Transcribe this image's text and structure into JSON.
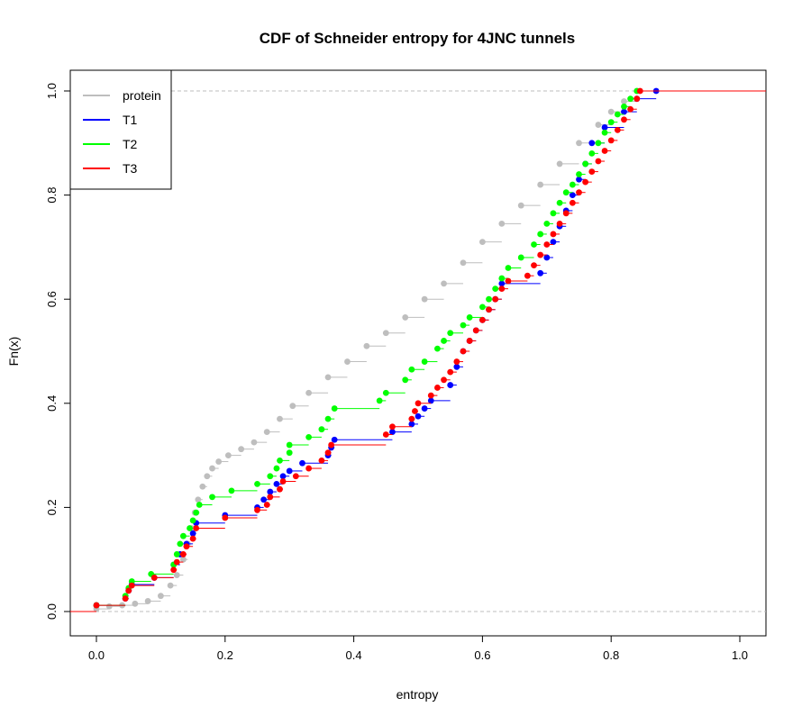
{
  "chart_data": {
    "type": "line",
    "title": "CDF of Schneider entropy for 4JNC  tunnels",
    "xlabel": "entropy",
    "ylabel": "Fn(x)",
    "xlim": [
      -0.04,
      1.04
    ],
    "ylim": [
      -0.04,
      1.04
    ],
    "x_ticks": [
      "0.0",
      "0.2",
      "0.4",
      "0.6",
      "0.8",
      "1.0"
    ],
    "y_ticks": [
      "0.0",
      "0.2",
      "0.4",
      "0.6",
      "0.8",
      "1.0"
    ],
    "grid": false,
    "reference_lines": [
      0.0,
      1.0
    ],
    "legend_position": "top-left",
    "series": [
      {
        "name": "protein",
        "color": "#bebebe",
        "points": [
          [
            0.0,
            0.005
          ],
          [
            0.02,
            0.01
          ],
          [
            0.04,
            0.012
          ],
          [
            0.06,
            0.015
          ],
          [
            0.08,
            0.02
          ],
          [
            0.1,
            0.03
          ],
          [
            0.115,
            0.05
          ],
          [
            0.125,
            0.07
          ],
          [
            0.135,
            0.1
          ],
          [
            0.142,
            0.13
          ],
          [
            0.148,
            0.16
          ],
          [
            0.153,
            0.19
          ],
          [
            0.158,
            0.215
          ],
          [
            0.165,
            0.24
          ],
          [
            0.172,
            0.26
          ],
          [
            0.18,
            0.275
          ],
          [
            0.19,
            0.288
          ],
          [
            0.205,
            0.3
          ],
          [
            0.225,
            0.312
          ],
          [
            0.245,
            0.325
          ],
          [
            0.265,
            0.345
          ],
          [
            0.285,
            0.37
          ],
          [
            0.305,
            0.395
          ],
          [
            0.33,
            0.42
          ],
          [
            0.36,
            0.45
          ],
          [
            0.39,
            0.48
          ],
          [
            0.42,
            0.51
          ],
          [
            0.45,
            0.535
          ],
          [
            0.48,
            0.565
          ],
          [
            0.51,
            0.6
          ],
          [
            0.54,
            0.63
          ],
          [
            0.57,
            0.67
          ],
          [
            0.6,
            0.71
          ],
          [
            0.63,
            0.745
          ],
          [
            0.66,
            0.78
          ],
          [
            0.69,
            0.82
          ],
          [
            0.72,
            0.86
          ],
          [
            0.75,
            0.9
          ],
          [
            0.78,
            0.935
          ],
          [
            0.8,
            0.96
          ],
          [
            0.82,
            0.98
          ],
          [
            0.84,
            1.0
          ]
        ]
      },
      {
        "name": "T1",
        "color": "#0000ff",
        "points": [
          [
            0.0,
            0.012
          ],
          [
            0.045,
            0.025
          ],
          [
            0.05,
            0.04
          ],
          [
            0.055,
            0.052
          ],
          [
            0.09,
            0.065
          ],
          [
            0.12,
            0.09
          ],
          [
            0.13,
            0.11
          ],
          [
            0.14,
            0.13
          ],
          [
            0.15,
            0.15
          ],
          [
            0.155,
            0.17
          ],
          [
            0.2,
            0.185
          ],
          [
            0.25,
            0.2
          ],
          [
            0.26,
            0.215
          ],
          [
            0.27,
            0.23
          ],
          [
            0.28,
            0.245
          ],
          [
            0.29,
            0.26
          ],
          [
            0.3,
            0.27
          ],
          [
            0.32,
            0.285
          ],
          [
            0.36,
            0.3
          ],
          [
            0.365,
            0.315
          ],
          [
            0.37,
            0.33
          ],
          [
            0.46,
            0.345
          ],
          [
            0.49,
            0.36
          ],
          [
            0.5,
            0.375
          ],
          [
            0.51,
            0.39
          ],
          [
            0.52,
            0.405
          ],
          [
            0.55,
            0.435
          ],
          [
            0.56,
            0.47
          ],
          [
            0.57,
            0.5
          ],
          [
            0.58,
            0.52
          ],
          [
            0.59,
            0.54
          ],
          [
            0.6,
            0.56
          ],
          [
            0.61,
            0.58
          ],
          [
            0.62,
            0.6
          ],
          [
            0.63,
            0.63
          ],
          [
            0.69,
            0.65
          ],
          [
            0.7,
            0.68
          ],
          [
            0.71,
            0.71
          ],
          [
            0.72,
            0.74
          ],
          [
            0.73,
            0.77
          ],
          [
            0.74,
            0.8
          ],
          [
            0.75,
            0.83
          ],
          [
            0.76,
            0.86
          ],
          [
            0.77,
            0.9
          ],
          [
            0.79,
            0.93
          ],
          [
            0.82,
            0.96
          ],
          [
            0.84,
            0.985
          ],
          [
            0.87,
            1.0
          ]
        ]
      },
      {
        "name": "T2",
        "color": "#00ff00",
        "points": [
          [
            0.0,
            0.012
          ],
          [
            0.045,
            0.03
          ],
          [
            0.05,
            0.045
          ],
          [
            0.055,
            0.058
          ],
          [
            0.085,
            0.072
          ],
          [
            0.12,
            0.09
          ],
          [
            0.125,
            0.11
          ],
          [
            0.13,
            0.13
          ],
          [
            0.135,
            0.145
          ],
          [
            0.145,
            0.16
          ],
          [
            0.15,
            0.175
          ],
          [
            0.155,
            0.19
          ],
          [
            0.16,
            0.205
          ],
          [
            0.18,
            0.22
          ],
          [
            0.21,
            0.232
          ],
          [
            0.25,
            0.245
          ],
          [
            0.27,
            0.26
          ],
          [
            0.28,
            0.275
          ],
          [
            0.285,
            0.29
          ],
          [
            0.3,
            0.305
          ],
          [
            0.3,
            0.32
          ],
          [
            0.33,
            0.335
          ],
          [
            0.35,
            0.35
          ],
          [
            0.36,
            0.37
          ],
          [
            0.37,
            0.39
          ],
          [
            0.44,
            0.405
          ],
          [
            0.45,
            0.42
          ],
          [
            0.48,
            0.445
          ],
          [
            0.49,
            0.465
          ],
          [
            0.51,
            0.48
          ],
          [
            0.53,
            0.505
          ],
          [
            0.54,
            0.52
          ],
          [
            0.55,
            0.535
          ],
          [
            0.57,
            0.55
          ],
          [
            0.58,
            0.565
          ],
          [
            0.6,
            0.585
          ],
          [
            0.61,
            0.6
          ],
          [
            0.62,
            0.62
          ],
          [
            0.63,
            0.64
          ],
          [
            0.64,
            0.66
          ],
          [
            0.66,
            0.68
          ],
          [
            0.68,
            0.705
          ],
          [
            0.69,
            0.725
          ],
          [
            0.7,
            0.745
          ],
          [
            0.71,
            0.765
          ],
          [
            0.72,
            0.785
          ],
          [
            0.73,
            0.805
          ],
          [
            0.74,
            0.82
          ],
          [
            0.75,
            0.84
          ],
          [
            0.76,
            0.86
          ],
          [
            0.77,
            0.88
          ],
          [
            0.78,
            0.9
          ],
          [
            0.79,
            0.92
          ],
          [
            0.8,
            0.94
          ],
          [
            0.81,
            0.955
          ],
          [
            0.82,
            0.97
          ],
          [
            0.83,
            0.985
          ],
          [
            0.84,
            1.0
          ]
        ]
      },
      {
        "name": "T3",
        "color": "#ff0000",
        "points": [
          [
            0.0,
            0.012
          ],
          [
            0.045,
            0.025
          ],
          [
            0.05,
            0.04
          ],
          [
            0.055,
            0.05
          ],
          [
            0.09,
            0.065
          ],
          [
            0.12,
            0.08
          ],
          [
            0.125,
            0.095
          ],
          [
            0.135,
            0.11
          ],
          [
            0.14,
            0.125
          ],
          [
            0.15,
            0.14
          ],
          [
            0.155,
            0.16
          ],
          [
            0.2,
            0.18
          ],
          [
            0.25,
            0.195
          ],
          [
            0.265,
            0.205
          ],
          [
            0.27,
            0.22
          ],
          [
            0.285,
            0.235
          ],
          [
            0.29,
            0.25
          ],
          [
            0.31,
            0.26
          ],
          [
            0.33,
            0.275
          ],
          [
            0.35,
            0.29
          ],
          [
            0.36,
            0.305
          ],
          [
            0.365,
            0.32
          ],
          [
            0.45,
            0.34
          ],
          [
            0.46,
            0.355
          ],
          [
            0.49,
            0.37
          ],
          [
            0.495,
            0.385
          ],
          [
            0.5,
            0.4
          ],
          [
            0.52,
            0.415
          ],
          [
            0.53,
            0.43
          ],
          [
            0.54,
            0.445
          ],
          [
            0.55,
            0.46
          ],
          [
            0.56,
            0.48
          ],
          [
            0.57,
            0.5
          ],
          [
            0.58,
            0.52
          ],
          [
            0.59,
            0.54
          ],
          [
            0.6,
            0.56
          ],
          [
            0.61,
            0.58
          ],
          [
            0.62,
            0.6
          ],
          [
            0.63,
            0.62
          ],
          [
            0.64,
            0.635
          ],
          [
            0.67,
            0.645
          ],
          [
            0.68,
            0.665
          ],
          [
            0.69,
            0.685
          ],
          [
            0.7,
            0.705
          ],
          [
            0.71,
            0.725
          ],
          [
            0.72,
            0.745
          ],
          [
            0.73,
            0.765
          ],
          [
            0.74,
            0.785
          ],
          [
            0.75,
            0.805
          ],
          [
            0.76,
            0.825
          ],
          [
            0.77,
            0.845
          ],
          [
            0.78,
            0.865
          ],
          [
            0.79,
            0.885
          ],
          [
            0.8,
            0.905
          ],
          [
            0.81,
            0.925
          ],
          [
            0.82,
            0.945
          ],
          [
            0.83,
            0.965
          ],
          [
            0.84,
            0.985
          ],
          [
            0.845,
            1.0
          ]
        ]
      }
    ]
  }
}
